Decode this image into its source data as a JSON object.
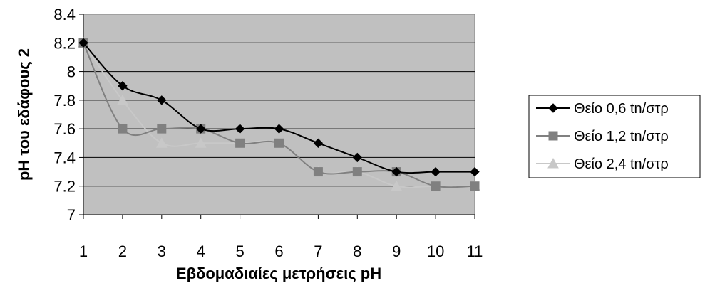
{
  "chart_data": {
    "type": "line",
    "title": "",
    "xlabel": "Εβδομαδιαίες μετρήσεις pH",
    "ylabel": "pH του εδάφους 2",
    "x": [
      1,
      2,
      3,
      4,
      5,
      6,
      7,
      8,
      9,
      10,
      11
    ],
    "xticks": [
      "1",
      "2",
      "3",
      "4",
      "5",
      "6",
      "7",
      "8",
      "9",
      "10",
      "11"
    ],
    "ylim": [
      7,
      8.4
    ],
    "yticks": [
      "7",
      "7.2",
      "7.4",
      "7.6",
      "7.8",
      "8",
      "8.2",
      "8.4"
    ],
    "grid": true,
    "legend_position": "right",
    "plot_background": "#c0c0c0",
    "series": [
      {
        "name": "Θείο 0,6 tn/στρ",
        "marker": "diamond",
        "color": "#000000",
        "values": [
          8.2,
          7.9,
          7.8,
          7.6,
          7.6,
          7.6,
          7.5,
          7.4,
          7.3,
          7.3,
          7.3
        ]
      },
      {
        "name": "Θείο 1,2 tn/στρ",
        "marker": "square",
        "color": "#808080",
        "values": [
          8.2,
          7.6,
          7.6,
          7.6,
          7.5,
          7.5,
          7.3,
          7.3,
          7.3,
          7.2,
          7.2
        ]
      },
      {
        "name": "Θείο 2,4 tn/στρ",
        "marker": "triangle",
        "color": "#c8c8c8",
        "values": [
          8.2,
          7.8,
          7.5,
          7.5,
          7.5,
          7.5,
          7.3,
          7.3,
          7.2,
          7.2,
          7.2
        ]
      }
    ]
  }
}
